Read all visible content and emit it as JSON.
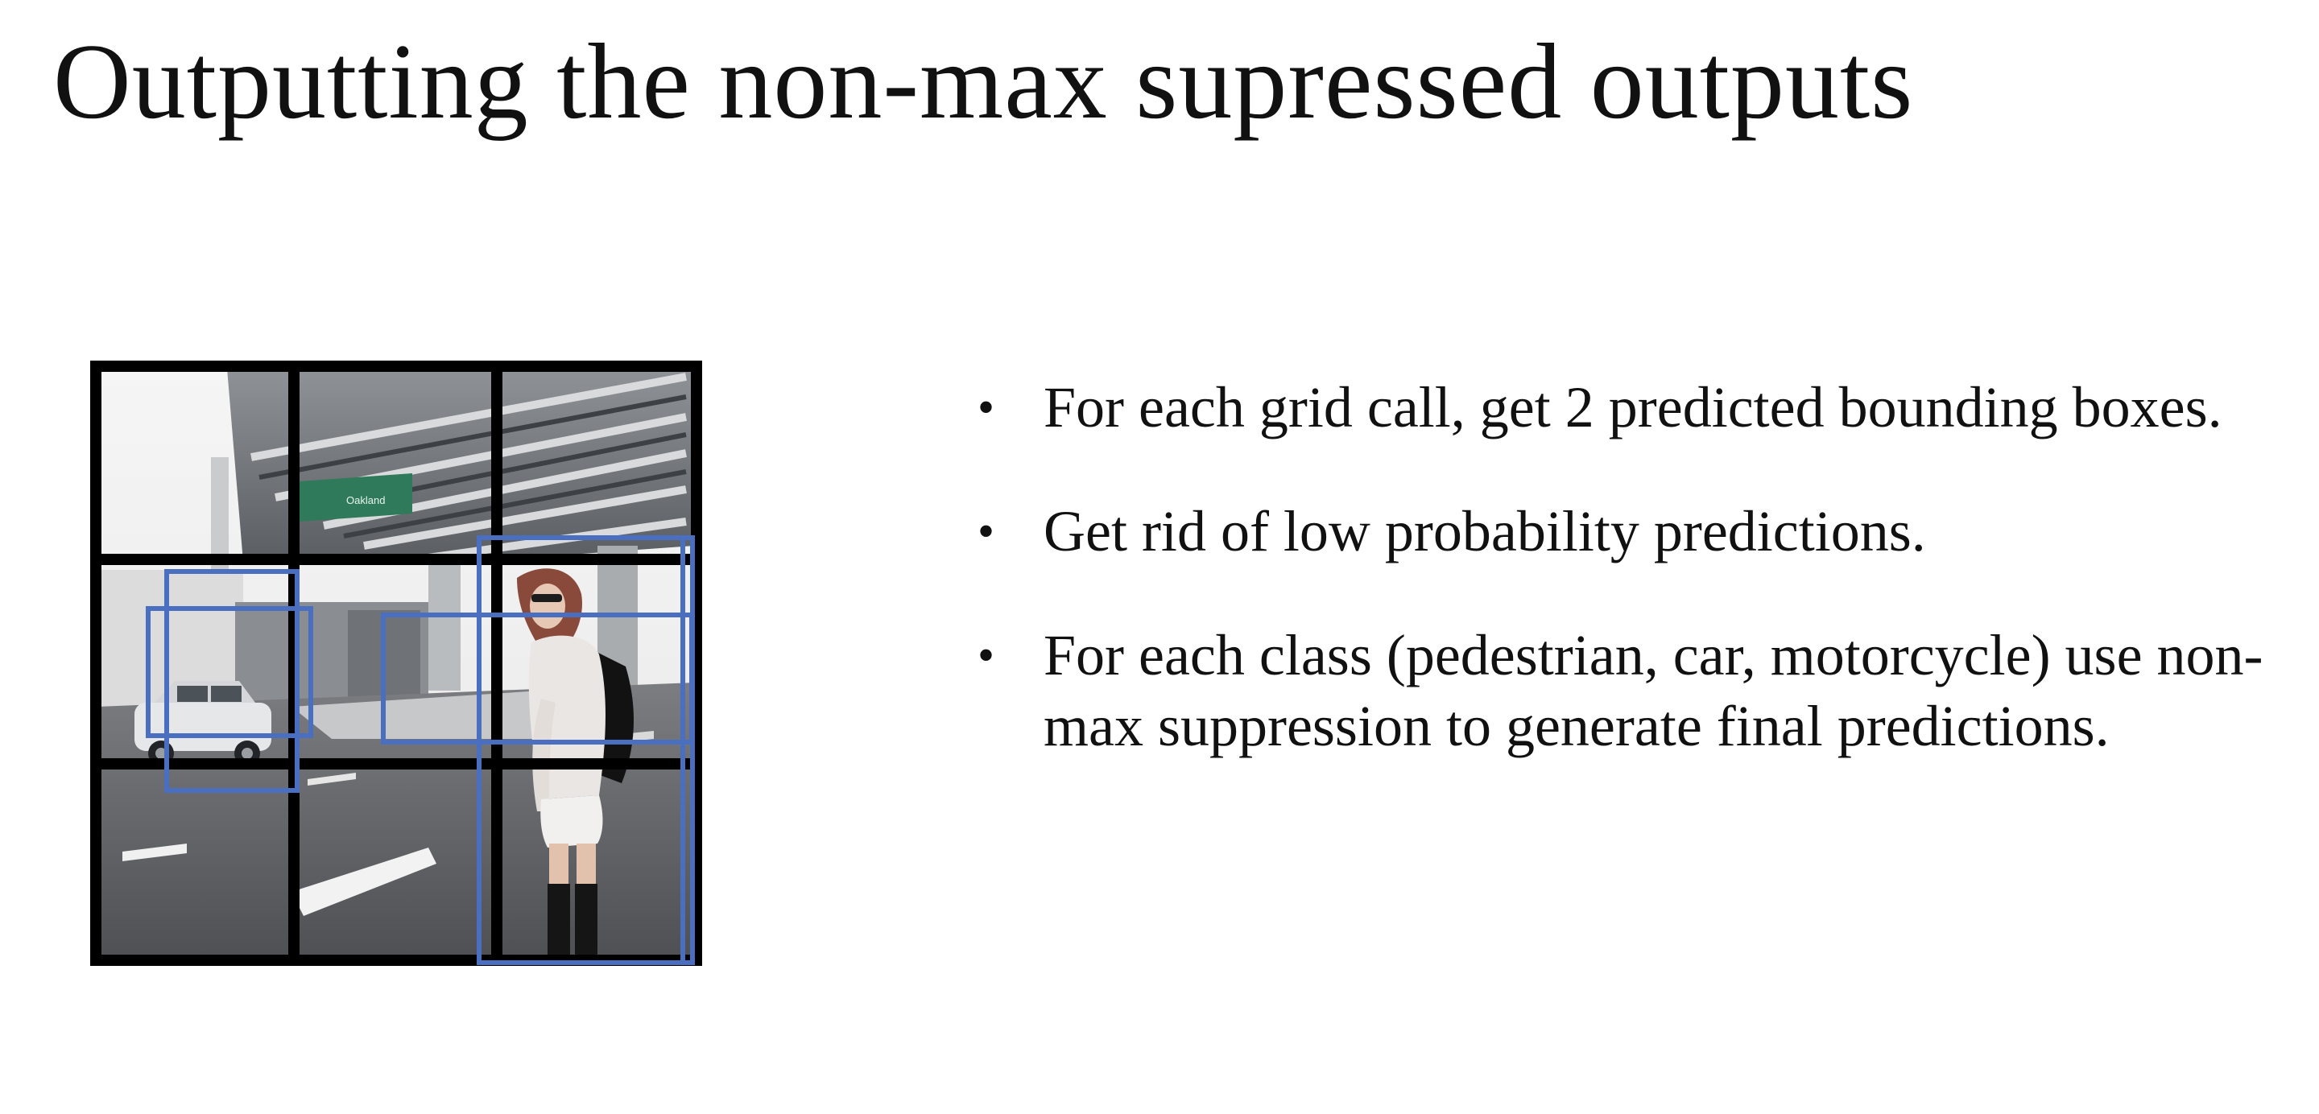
{
  "slide": {
    "title": "Outputting the non-max supressed outputs",
    "bullet_glyph": "•",
    "bullets": [
      {
        "text": "For each grid call, get 2 predicted bounding boxes."
      },
      {
        "text": "Get rid of low probability predictions."
      },
      {
        "text": "For each class (pedestrian, car, motorcycle) use non-max suppression to generate final predictions."
      }
    ]
  },
  "figure": {
    "grid": "3x3",
    "sign_text": "Oakland",
    "colors": {
      "grid_line": "#000000",
      "box_stroke": "#4a6fc0",
      "sign_green": "#2f7a5a"
    }
  }
}
